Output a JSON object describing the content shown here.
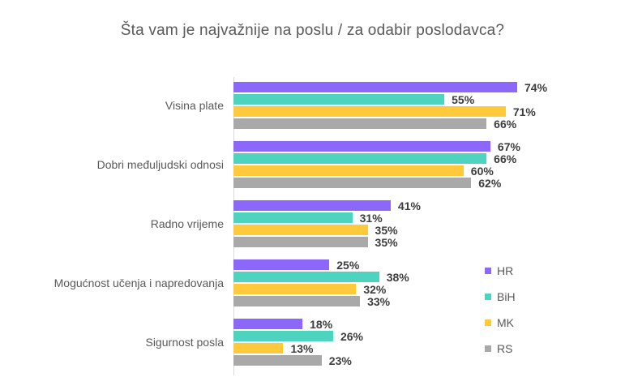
{
  "title": "Šta vam je najvažnije na poslu / za odabir poslodavca?",
  "colors": {
    "background": "#ffffff",
    "axis_line": "#d9d9d9",
    "title_text": "#595959",
    "category_text": "#595959",
    "value_label_text": "#3d3d3d",
    "legend_text": "#595959"
  },
  "chart_data": {
    "type": "bar",
    "orientation": "horizontal",
    "title": "Šta vam je najvažnije na poslu / za odabir poslodavca?",
    "xlabel": "",
    "ylabel": "",
    "xlim": [
      0,
      100
    ],
    "grid": false,
    "data_labels": true,
    "value_suffix": "%",
    "legend_position": "right-middle",
    "categories": [
      "Visina plate",
      "Dobri međuljudski odnosi",
      "Radno vrijeme",
      "Mogućnost učenja i napredovanja",
      "Sigurnost posla"
    ],
    "series": [
      {
        "name": "HR",
        "color": "#8b68fa",
        "values": [
          74,
          67,
          41,
          25,
          18
        ]
      },
      {
        "name": "BiH",
        "color": "#4ed3bf",
        "values": [
          55,
          66,
          31,
          38,
          26
        ]
      },
      {
        "name": "MK",
        "color": "#ffc93c",
        "values": [
          71,
          60,
          35,
          32,
          13
        ]
      },
      {
        "name": "RS",
        "color": "#a9a9a9",
        "values": [
          66,
          62,
          35,
          33,
          23
        ]
      }
    ]
  }
}
